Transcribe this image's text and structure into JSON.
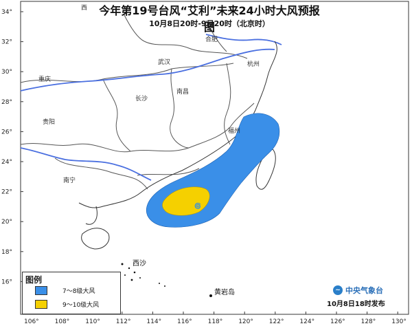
{
  "header": {
    "title": "今年第19号台风“艾利”未来24小时大风预报图",
    "subtitle": "10月8日20时-9日20时（北京时）"
  },
  "axes": {
    "lat_labels": [
      "34°",
      "32°",
      "30°",
      "28°",
      "26°",
      "24°",
      "22°",
      "20°",
      "18°",
      "16°"
    ],
    "lon_labels": [
      "106°",
      "108°",
      "110°",
      "112°",
      "114°",
      "116°",
      "118°",
      "120°",
      "122°",
      "124°",
      "126°",
      "128°",
      "130°"
    ]
  },
  "places": {
    "hefei": "合肥",
    "hangzhou": "杭州",
    "changsha": "长沙",
    "nanchang": "南昌",
    "guiyang": "贵阳",
    "nanning": "南宁",
    "fuzhou": "福州",
    "xisha": "西沙",
    "huangyandao": "黄岩岛",
    "chongqing": "重庆",
    "wuhan": "武汉",
    "xian": "西"
  },
  "legend": {
    "title": "图例",
    "items": [
      {
        "label": "7～8级大风",
        "color": "#3a8fe8"
      },
      {
        "label": "9～10级大风",
        "color": "#f5d000"
      }
    ]
  },
  "footer": {
    "org_name": "中央气象台",
    "issue_time": "10月8日18时发布"
  },
  "colors": {
    "wind_7_8": "#3a8fe8",
    "wind_9_10": "#f5d000",
    "river": "#4a6fe0",
    "border": "#555555"
  }
}
